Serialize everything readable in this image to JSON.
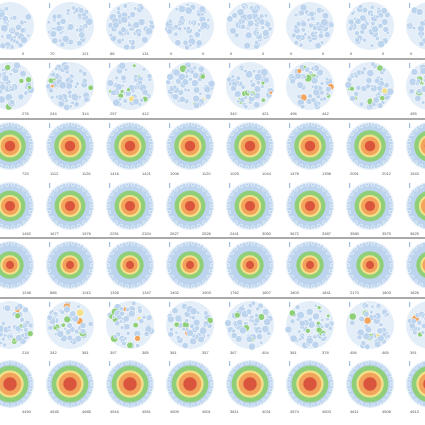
{
  "palette": {
    "blue": "#bcd4ee",
    "blue_stroke": "#9ebfe3",
    "green": "#8fcf7a",
    "yellow": "#f2e08a",
    "orange": "#f3a45c",
    "red": "#d9553b",
    "divider": "#555555"
  },
  "rows": [
    {
      "type": "scattered",
      "density": 0.0,
      "labels": [
        [
          "0",
          "0"
        ],
        [
          "70",
          "121"
        ],
        [
          "88",
          "131"
        ],
        [
          "0",
          "0"
        ],
        [
          "0",
          "0"
        ],
        [
          "0",
          "0"
        ],
        [
          "0",
          "0"
        ],
        [
          "0",
          "0"
        ]
      ]
    },
    {
      "type": "scattered",
      "density": 0.5,
      "labels": [
        [
          "171",
          "276"
        ],
        [
          "244",
          "314"
        ],
        [
          "297",
          "412"
        ],
        [
          "",
          ""
        ],
        [
          "342",
          "421"
        ],
        [
          "496",
          "442"
        ],
        [
          "",
          ""
        ],
        [
          "455",
          "459"
        ]
      ]
    },
    {
      "type": "rings",
      "ring": 0.6,
      "labels": [
        [
          "451",
          "729"
        ],
        [
          "1112",
          "1126"
        ],
        [
          "1416",
          "1421"
        ],
        [
          "1006",
          "1120"
        ],
        [
          "1025",
          "1044"
        ],
        [
          "1478",
          "1398"
        ],
        [
          "2091",
          "2012"
        ],
        [
          "1543",
          "1581"
        ]
      ]
    },
    {
      "type": "rings",
      "ring": 0.55,
      "labels": [
        [
          "1695",
          "1452"
        ],
        [
          "1677",
          "1976"
        ],
        [
          "2251",
          "2324"
        ],
        [
          "2627",
          "2526"
        ],
        [
          "2441",
          "3050"
        ],
        [
          "3672",
          "3387"
        ],
        [
          "3580",
          "3575"
        ],
        [
          "3625",
          "3629"
        ]
      ]
    },
    {
      "type": "rings",
      "ring": 0.35,
      "labels": [
        [
          "1401",
          "1248"
        ],
        [
          "886",
          "1143"
        ],
        [
          "1326",
          "1347"
        ],
        [
          "1402",
          "1503"
        ],
        [
          "1762",
          "1807"
        ],
        [
          "1803",
          "1841"
        ],
        [
          "2170",
          "1803"
        ],
        [
          "1826",
          "1802"
        ]
      ]
    },
    {
      "type": "scattered",
      "density": 0.4,
      "labels": [
        [
          "151",
          "218"
        ],
        [
          "342",
          "381"
        ],
        [
          "397",
          "385"
        ],
        [
          "381",
          "357"
        ],
        [
          "367",
          "404"
        ],
        [
          "381",
          "378"
        ],
        [
          "456",
          "465"
        ],
        [
          "391",
          "469"
        ]
      ]
    },
    {
      "type": "rings",
      "ring": 0.9,
      "labels": [
        [
          "4945",
          "4450"
        ],
        [
          "4545",
          "4685"
        ],
        [
          "4516",
          "4551"
        ],
        [
          "4509",
          "4501"
        ],
        [
          "3811",
          "4031"
        ],
        [
          "4574",
          "4503"
        ],
        [
          "4611",
          "4508"
        ],
        [
          "4613",
          "4584"
        ]
      ]
    }
  ]
}
